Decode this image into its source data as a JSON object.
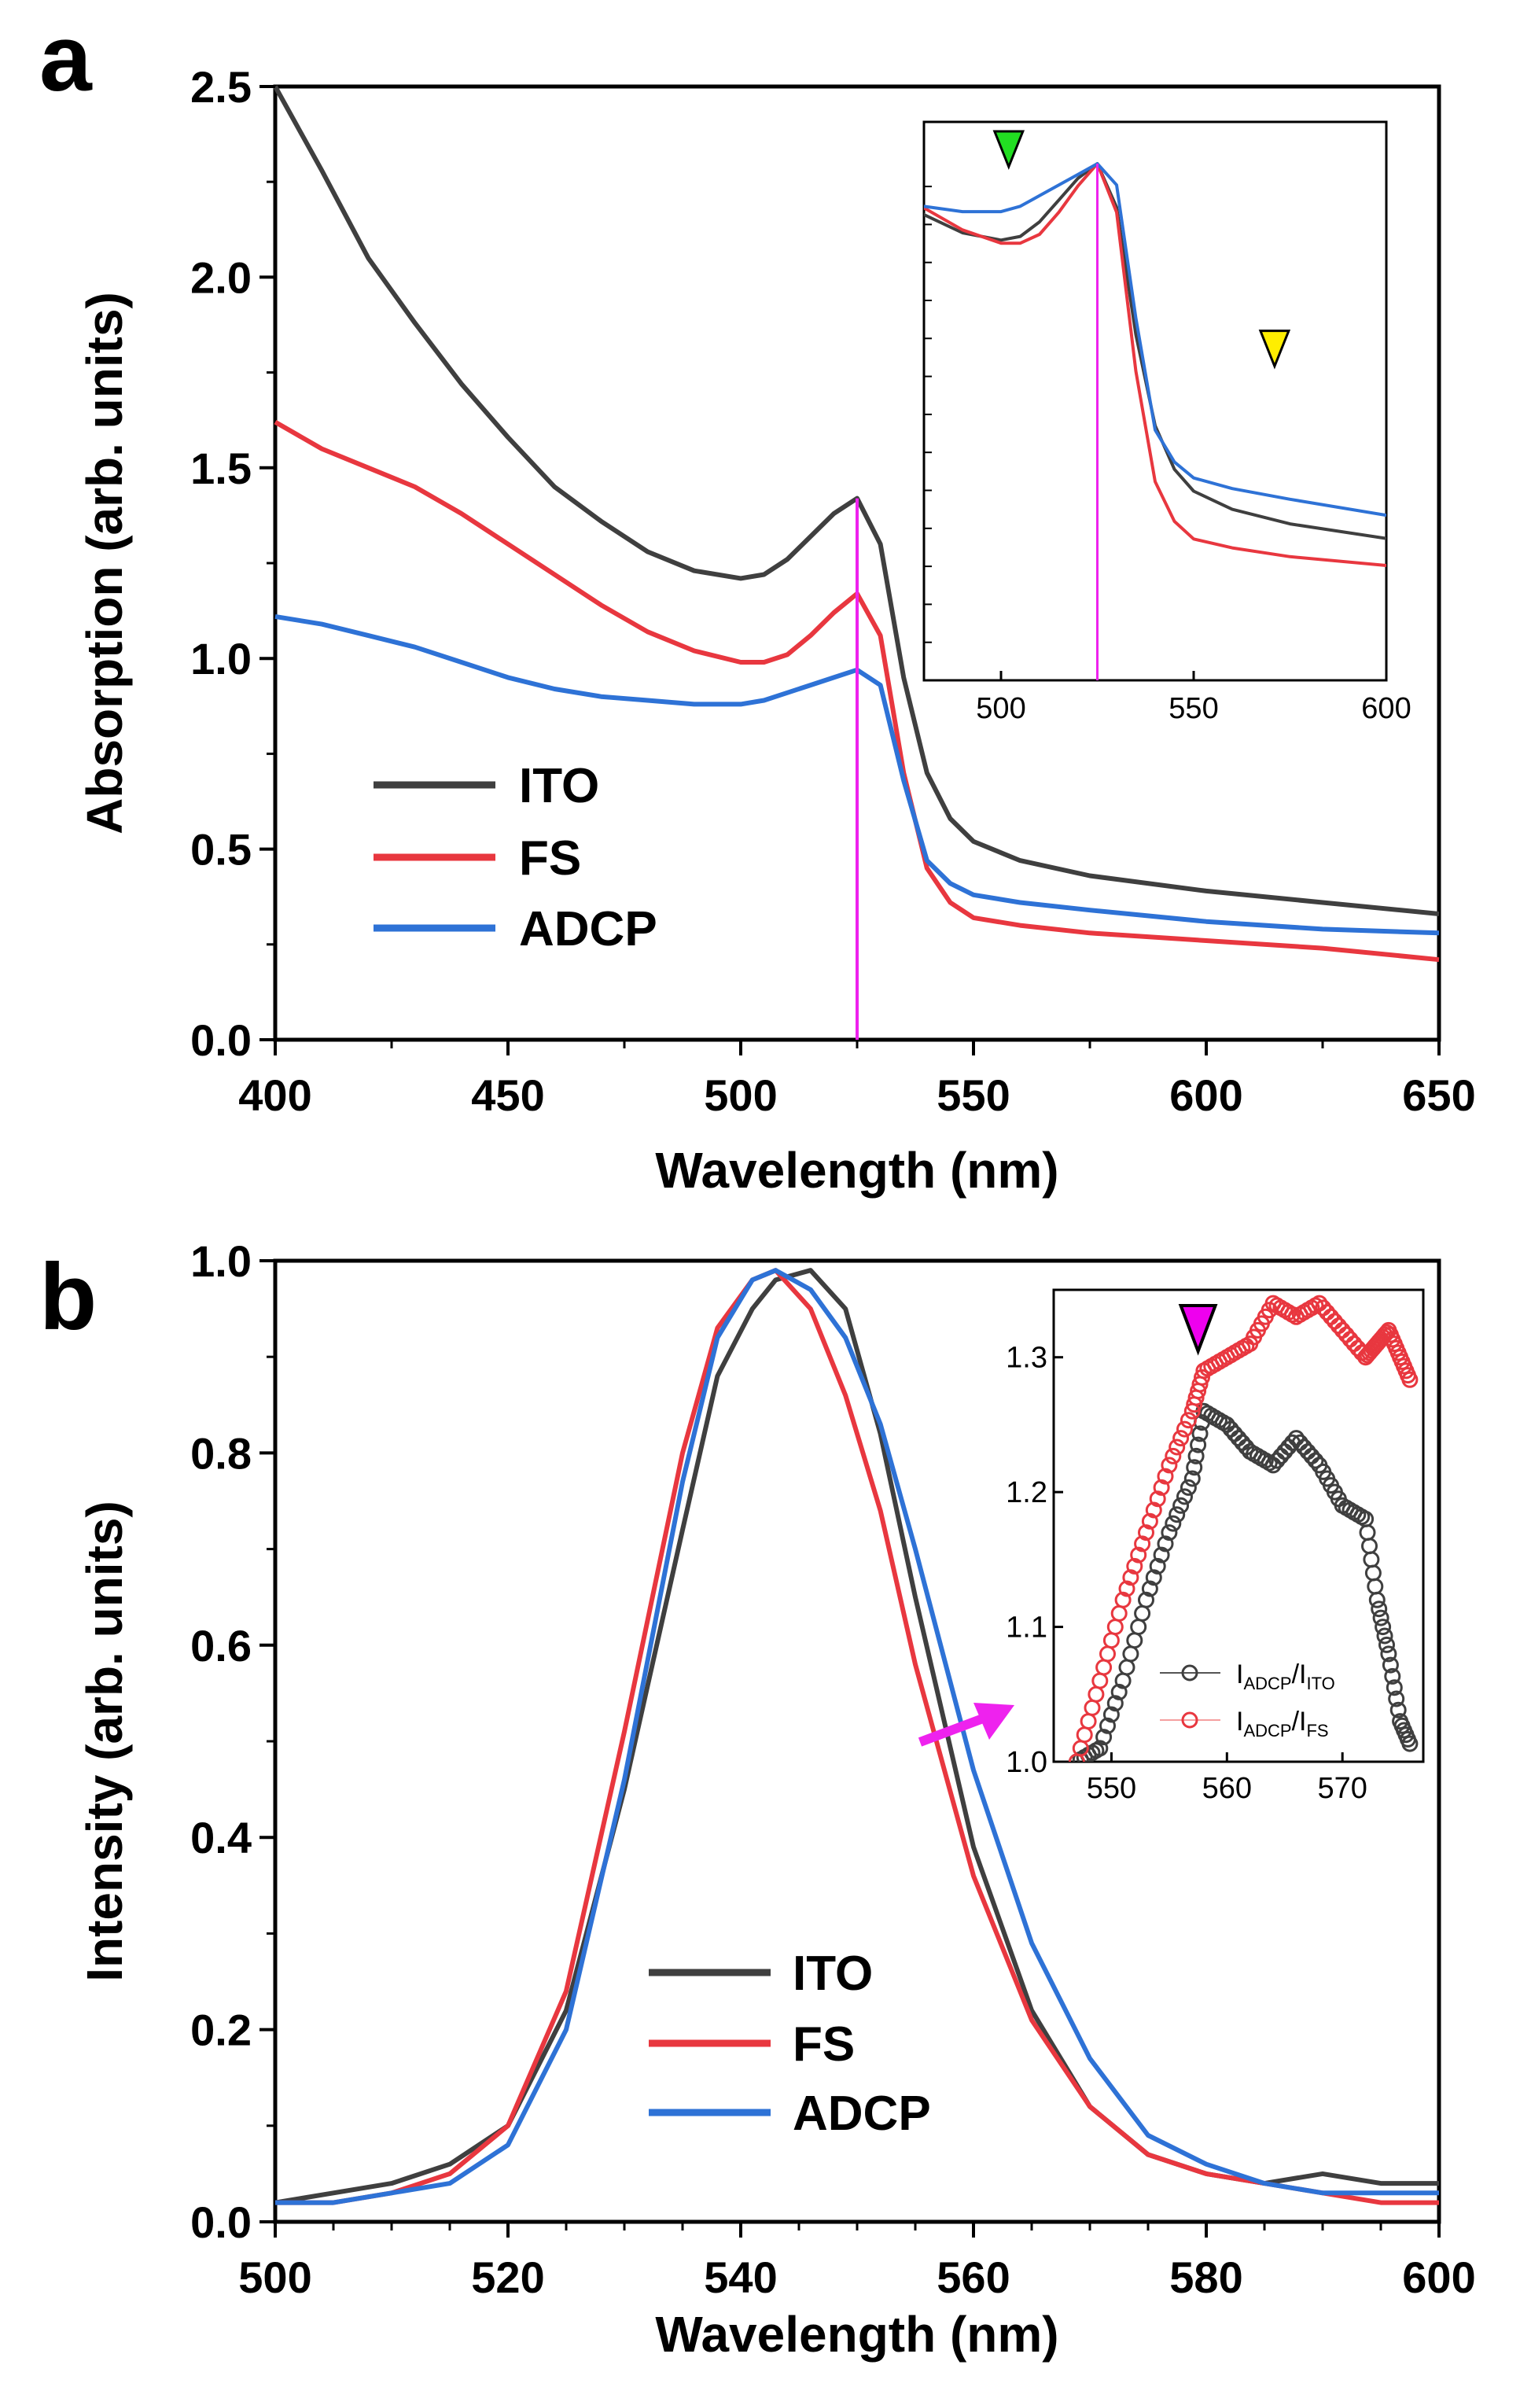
{
  "panel_a": {
    "letter": "a",
    "xlabel": "Wavelength (nm)",
    "ylabel": "Absorption (arb. units)",
    "xlim": [
      400,
      650
    ],
    "ylim": [
      0,
      2.5
    ],
    "xticks": [
      "400",
      "450",
      "500",
      "550",
      "600",
      "650"
    ],
    "yticks": [
      "0.0",
      "0.5",
      "1.0",
      "1.5",
      "2.0",
      "2.5"
    ],
    "legend": [
      "ITO",
      "FS",
      "ADCP"
    ],
    "peak_marker_nm": 525,
    "inset": {
      "xlim": [
        480,
        600
      ],
      "xticks": [
        "500",
        "550",
        "600"
      ],
      "markers": [
        {
          "name": "green",
          "x_nm": 502,
          "color": "#22dd22"
        },
        {
          "name": "yellow",
          "x_nm": 571,
          "color": "#ffee00"
        }
      ]
    }
  },
  "panel_b": {
    "letter": "b",
    "xlabel": "Wavelength (nm)",
    "ylabel": "Intensity (arb. units)",
    "xlim": [
      500,
      600
    ],
    "ylim": [
      0,
      1.0
    ],
    "xticks": [
      "500",
      "520",
      "540",
      "560",
      "580",
      "600"
    ],
    "yticks": [
      "0.0",
      "0.2",
      "0.4",
      "0.6",
      "0.8",
      "1.0"
    ],
    "legend": [
      "ITO",
      "FS",
      "ADCP"
    ],
    "inset": {
      "xlim": [
        545,
        577
      ],
      "ylim": [
        1.0,
        1.35
      ],
      "xticks": [
        "550",
        "560",
        "570"
      ],
      "yticks": [
        "1.0",
        "1.1",
        "1.2",
        "1.3"
      ],
      "legend": [
        {
          "main": "I",
          "sub1": "ADCP",
          "sep": "/I",
          "sub2": "ITO"
        },
        {
          "main": "I",
          "sub1": "ADCP",
          "sep": "/I",
          "sub2": "FS"
        }
      ],
      "marker_nm": 557.5,
      "marker_color": "#ee00ee"
    }
  },
  "colors": {
    "ITO": "#3f3f3f",
    "FS": "#e8373f",
    "ADCP": "#2e72d6",
    "marker_line": "#ee22ee"
  },
  "chart_data": [
    {
      "type": "line",
      "title": "",
      "xlabel": "Wavelength (nm)",
      "ylabel": "Absorption (arb. units)",
      "xlim": [
        400,
        650
      ],
      "ylim": [
        0,
        2.5
      ],
      "x": [
        400,
        410,
        420,
        430,
        440,
        450,
        460,
        470,
        480,
        490,
        500,
        505,
        510,
        515,
        520,
        525,
        530,
        535,
        540,
        545,
        550,
        560,
        575,
        600,
        625,
        650
      ],
      "series": [
        {
          "name": "ITO",
          "values": [
            2.5,
            2.28,
            2.05,
            1.88,
            1.72,
            1.58,
            1.45,
            1.36,
            1.28,
            1.23,
            1.21,
            1.22,
            1.26,
            1.32,
            1.38,
            1.42,
            1.3,
            0.95,
            0.7,
            0.58,
            0.52,
            0.47,
            0.43,
            0.39,
            0.36,
            0.33
          ]
        },
        {
          "name": "FS",
          "values": [
            1.62,
            1.55,
            1.5,
            1.45,
            1.38,
            1.3,
            1.22,
            1.14,
            1.07,
            1.02,
            0.99,
            0.99,
            1.01,
            1.06,
            1.12,
            1.17,
            1.06,
            0.7,
            0.45,
            0.36,
            0.32,
            0.3,
            0.28,
            0.26,
            0.24,
            0.21
          ]
        },
        {
          "name": "ADCP",
          "values": [
            1.11,
            1.09,
            1.06,
            1.03,
            0.99,
            0.95,
            0.92,
            0.9,
            0.89,
            0.88,
            0.88,
            0.89,
            0.91,
            0.93,
            0.95,
            0.97,
            0.93,
            0.68,
            0.47,
            0.41,
            0.38,
            0.36,
            0.34,
            0.31,
            0.29,
            0.28
          ]
        }
      ]
    },
    {
      "type": "line",
      "title": "",
      "xlabel": "Wavelength (nm)",
      "ylabel": "Intensity (arb. units)",
      "xlim": [
        500,
        600
      ],
      "ylim": [
        0,
        1.0
      ],
      "x": [
        500,
        505,
        510,
        515,
        520,
        525,
        530,
        535,
        538,
        541,
        543,
        546,
        549,
        552,
        555,
        560,
        565,
        570,
        575,
        580,
        585,
        590,
        595,
        600
      ],
      "series": [
        {
          "name": "ITO",
          "values": [
            0.02,
            0.03,
            0.04,
            0.06,
            0.1,
            0.22,
            0.45,
            0.72,
            0.88,
            0.95,
            0.98,
            0.99,
            0.95,
            0.82,
            0.65,
            0.39,
            0.22,
            0.12,
            0.07,
            0.05,
            0.04,
            0.05,
            0.04,
            0.04
          ]
        },
        {
          "name": "FS",
          "values": [
            0.02,
            0.02,
            0.03,
            0.05,
            0.1,
            0.24,
            0.51,
            0.8,
            0.93,
            0.98,
            0.99,
            0.95,
            0.86,
            0.74,
            0.58,
            0.36,
            0.21,
            0.12,
            0.07,
            0.05,
            0.04,
            0.03,
            0.02,
            0.02
          ]
        },
        {
          "name": "ADCP",
          "values": [
            0.02,
            0.02,
            0.03,
            0.04,
            0.08,
            0.2,
            0.46,
            0.77,
            0.92,
            0.98,
            0.99,
            0.97,
            0.92,
            0.83,
            0.7,
            0.47,
            0.29,
            0.17,
            0.09,
            0.06,
            0.04,
            0.03,
            0.03,
            0.03
          ]
        }
      ]
    },
    {
      "type": "scatter",
      "title": "",
      "xlabel": "",
      "ylabel": "",
      "xlim": [
        545,
        577
      ],
      "ylim": [
        1.0,
        1.35
      ],
      "x": [
        547,
        549,
        551,
        553,
        555,
        557,
        558,
        560,
        562,
        564,
        566,
        568,
        570,
        572,
        573,
        574,
        575,
        576
      ],
      "series": [
        {
          "name": "I_ADCP/I_ITO",
          "values": [
            1.0,
            1.01,
            1.06,
            1.12,
            1.17,
            1.21,
            1.26,
            1.25,
            1.23,
            1.22,
            1.24,
            1.22,
            1.19,
            1.18,
            1.12,
            1.08,
            1.03,
            1.01
          ]
        },
        {
          "name": "I_ADCP/I_FS",
          "values": [
            1.0,
            1.06,
            1.12,
            1.17,
            1.22,
            1.26,
            1.29,
            1.3,
            1.31,
            1.34,
            1.33,
            1.34,
            1.32,
            1.3,
            1.31,
            1.32,
            1.3,
            1.28
          ]
        }
      ]
    }
  ]
}
